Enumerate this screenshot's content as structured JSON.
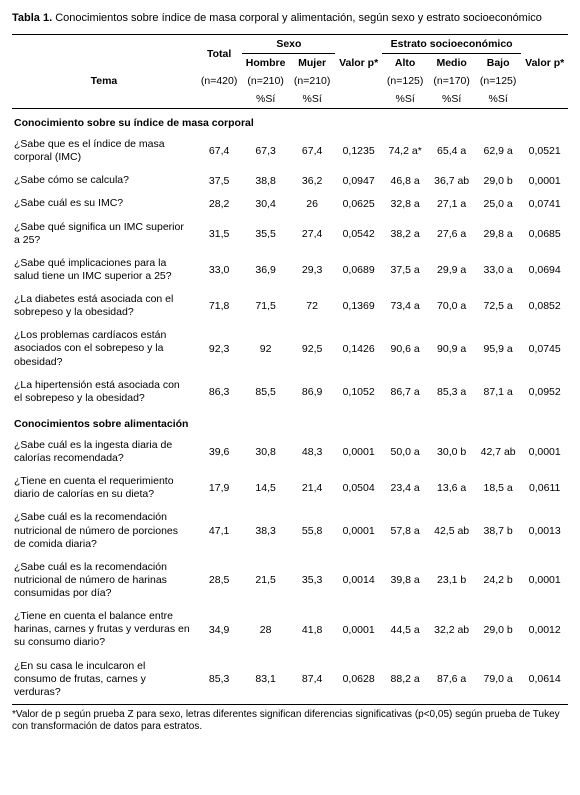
{
  "title_bold": "Tabla 1.",
  "title_rest": " Conocimientos sobre índice de masa corporal y alimentación, según sexo y estrato socioeconómico",
  "headers": {
    "tema": "Tema",
    "total": "Total",
    "sexo": "Sexo",
    "hombre": "Hombre",
    "mujer": "Mujer",
    "valor_p": "Valor p*",
    "estrato": "Estrato socioeconómico",
    "alto": "Alto",
    "medio": "Medio",
    "bajo": "Bajo",
    "n420": "(n=420)",
    "n210": "(n=210)",
    "n125": "(n=125)",
    "n170": "(n=170)",
    "pct": "%Sí"
  },
  "section1": "Conocimiento sobre su índice de masa corporal",
  "section2": "Conocimientos sobre alimentación",
  "rows1": [
    {
      "q": "¿Sabe que es el índice de masa corporal (IMC)",
      "t": "67,4",
      "h": "67,3",
      "m": "67,4",
      "p1": "0,1235",
      "a": "74,2 a*",
      "me": "65,4 a",
      "b": "62,9 a",
      "p2": "0,0521"
    },
    {
      "q": "¿Sabe cómo se calcula?",
      "t": "37,5",
      "h": "38,8",
      "m": "36,2",
      "p1": "0,0947",
      "a": "46,8 a",
      "me": "36,7 ab",
      "b": "29,0 b",
      "p2": "0,0001"
    },
    {
      "q": "¿Sabe cuál es su IMC?",
      "t": "28,2",
      "h": "30,4",
      "m": "26",
      "p1": "0,0625",
      "a": "32,8 a",
      "me": "27,1 a",
      "b": "25,0 a",
      "p2": "0,0741"
    },
    {
      "q": "¿Sabe qué significa un IMC superior a 25?",
      "t": "31,5",
      "h": "35,5",
      "m": "27,4",
      "p1": "0,0542",
      "a": "38,2 a",
      "me": "27,6 a",
      "b": "29,8 a",
      "p2": "0,0685"
    },
    {
      "q": "¿Sabe qué implicaciones para la salud tiene un IMC superior a 25?",
      "t": "33,0",
      "h": "36,9",
      "m": "29,3",
      "p1": "0,0689",
      "a": "37,5 a",
      "me": "29,9 a",
      "b": "33,0 a",
      "p2": "0,0694"
    },
    {
      "q": "¿La diabetes está asociada con el sobrepeso y la obesidad?",
      "t": "71,8",
      "h": "71,5",
      "m": "72",
      "p1": "0,1369",
      "a": "73,4 a",
      "me": "70,0 a",
      "b": "72,5 a",
      "p2": "0,0852"
    },
    {
      "q": "¿Los problemas cardíacos están asociados con el sobrepeso y la obesidad?",
      "t": "92,3",
      "h": "92",
      "m": "92,5",
      "p1": "0,1426",
      "a": "90,6 a",
      "me": "90,9 a",
      "b": "95,9 a",
      "p2": "0,0745"
    },
    {
      "q": "¿La hipertensión está asociada con el sobrepeso y la obesidad?",
      "t": "86,3",
      "h": "85,5",
      "m": "86,9",
      "p1": "0,1052",
      "a": "86,7 a",
      "me": "85,3 a",
      "b": "87,1 a",
      "p2": "0,0952"
    }
  ],
  "rows2": [
    {
      "q": "¿Sabe cuál es la ingesta diaria de calorías recomendada?",
      "t": "39,6",
      "h": "30,8",
      "m": "48,3",
      "p1": "0,0001",
      "a": "50,0 a",
      "me": "30,0 b",
      "b": "42,7 ab",
      "p2": "0,0001"
    },
    {
      "q": "¿Tiene en cuenta el requerimiento diario de calorías en su dieta?",
      "t": "17,9",
      "h": "14,5",
      "m": "21,4",
      "p1": "0,0504",
      "a": "23,4 a",
      "me": "13,6 a",
      "b": "18,5 a",
      "p2": "0,0611"
    },
    {
      "q": "¿Sabe cuál es la recomendación nutricional de número de porciones de comida diaria?",
      "t": "47,1",
      "h": "38,3",
      "m": "55,8",
      "p1": "0,0001",
      "a": "57,8 a",
      "me": "42,5 ab",
      "b": "38,7 b",
      "p2": "0,0013"
    },
    {
      "q": "¿Sabe cuál es la recomendación nutricional de número de harinas consumidas por día?",
      "t": "28,5",
      "h": "21,5",
      "m": "35,3",
      "p1": "0,0014",
      "a": "39,8 a",
      "me": "23,1 b",
      "b": "24,2 b",
      "p2": "0,0001"
    },
    {
      "q": "¿Tiene en cuenta el balance entre harinas, carnes y frutas y verduras en su consumo diario?",
      "t": "34,9",
      "h": "28",
      "m": "41,8",
      "p1": "0,0001",
      "a": "44,5 a",
      "me": "32,2 ab",
      "b": "29,0 b",
      "p2": "0,0012"
    },
    {
      "q": "¿En su casa le inculcaron el consumo de frutas, carnes y verduras?",
      "t": "85,3",
      "h": "83,1",
      "m": "87,4",
      "p1": "0,0628",
      "a": "88,2 a",
      "me": "87,6 a",
      "b": "79,0 a",
      "p2": "0,0614"
    }
  ],
  "footnote": "*Valor de p según prueba Z para sexo, letras diferentes significan diferencias significativas (p<0,05) según prueba de Tukey con transformación de datos para estratos."
}
